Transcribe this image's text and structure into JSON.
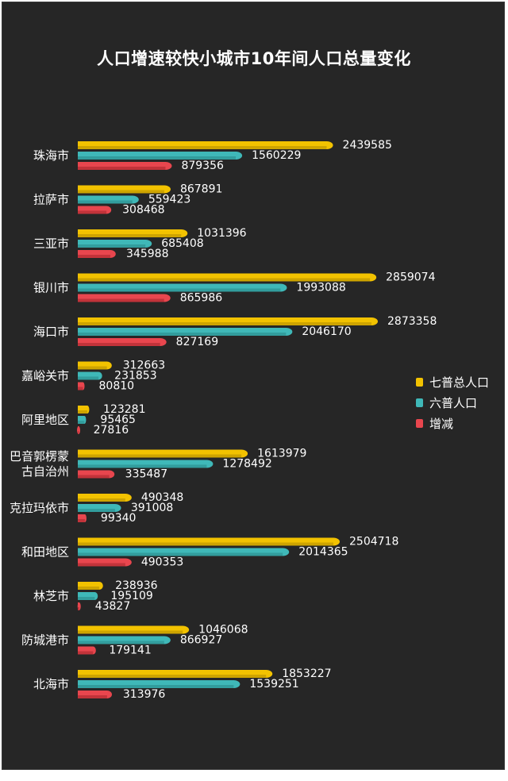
{
  "chart_data": {
    "type": "bar",
    "orientation": "horizontal",
    "title": "人口增速较快小城市10年间人口总量变化",
    "categories": [
      "珠海市",
      "拉萨市",
      "三亚市",
      "银川市",
      "海口市",
      "嘉峪关市",
      "阿里地区",
      "巴音郭楞蒙古自治州",
      "克拉玛依市",
      "和田地区",
      "林芝市",
      "防城港市",
      "北海市"
    ],
    "category_lines": [
      [
        "珠海市"
      ],
      [
        "拉萨市"
      ],
      [
        "三亚市"
      ],
      [
        "银川市"
      ],
      [
        "海口市"
      ],
      [
        "嘉峪关市"
      ],
      [
        "阿里地区"
      ],
      [
        "巴音郭楞蒙",
        "古自治州"
      ],
      [
        "克拉玛依市"
      ],
      [
        "和田地区"
      ],
      [
        "林芝市"
      ],
      [
        "防城港市"
      ],
      [
        "北海市"
      ]
    ],
    "series": [
      {
        "name": "七普总人口",
        "color": "#f2c200",
        "values": [
          2439585,
          867891,
          1031396,
          2859074,
          2873358,
          312663,
          123281,
          1613979,
          490348,
          2504718,
          238936,
          1046068,
          1853227
        ]
      },
      {
        "name": "六普人口",
        "color": "#3fb8b8",
        "values": [
          1560229,
          559423,
          685408,
          1993088,
          2046170,
          231853,
          95465,
          1278492,
          391008,
          2014365,
          195109,
          866927,
          1539251
        ]
      },
      {
        "name": "增减",
        "color": "#e8464e",
        "values": [
          879356,
          308468,
          345988,
          865986,
          827169,
          80810,
          27816,
          335487,
          99340,
          490353,
          43827,
          179141,
          313976
        ]
      }
    ],
    "xlim": [
      0,
      2873358
    ],
    "grid": false,
    "legend_position": "right"
  }
}
